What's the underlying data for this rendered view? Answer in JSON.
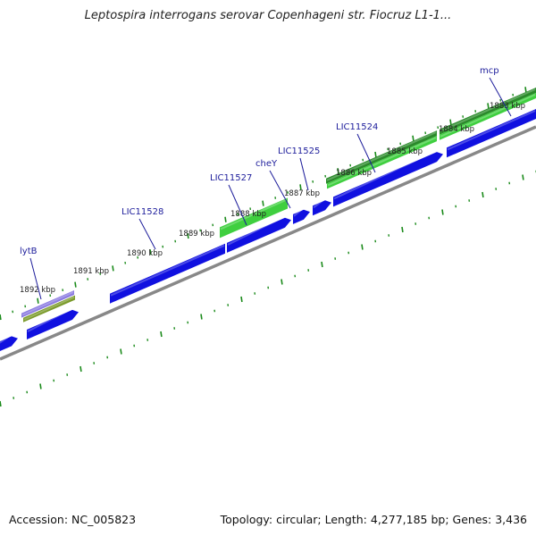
{
  "title": "Leptospira interrogans serovar Copenhageni str. Fiocruz L1-1...",
  "footer": {
    "accession": "Accession: NC_005823",
    "summary": "Topology: circular; Length: 4,277,185 bp; Genes: 3,436"
  },
  "colors": {
    "forward_cds": "#1010e0",
    "gene_green": "#3fcf3f",
    "gene_dark_green": "#2a8a2a",
    "gene_purple": "#8a7ae0",
    "gene_olive": "#7a9a2a",
    "backbone": "#888888",
    "tick": "#1a8a1a",
    "label": "#1d1d9b"
  },
  "chart_data": {
    "type": "genome-map",
    "scale_unit": "kbp",
    "scale_labels": [
      "1892 kbp",
      "1891 kbp",
      "1890 kbp",
      "1889 kbp",
      "1888 kbp",
      "1887 kbp",
      "1886 kbp",
      "1885 kbp",
      "1884 kbp",
      "1883 kbp"
    ],
    "gene_labels": [
      "lytB",
      "LIC11528",
      "LIC11527",
      "cheY",
      "LIC11525",
      "LIC11524",
      "mcp"
    ]
  }
}
